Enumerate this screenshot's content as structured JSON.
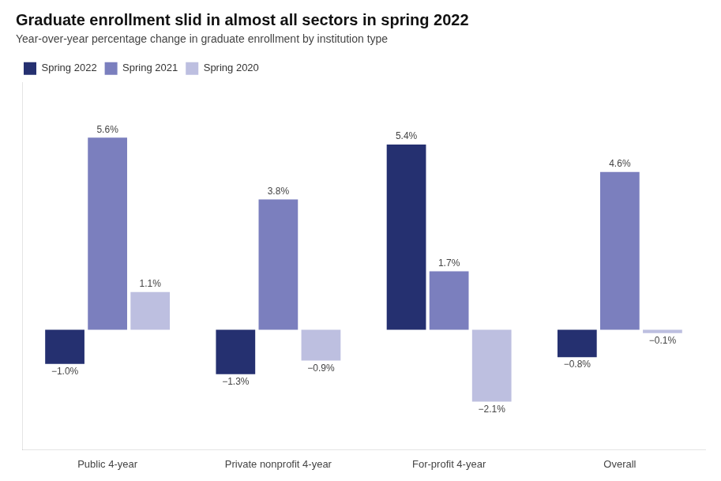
{
  "chart_data": {
    "type": "bar",
    "title": "Graduate enrollment slid in almost all sectors in spring 2022",
    "subtitle": "Year-over-year percentage change in graduate enrollment by institution type",
    "categories": [
      "Public 4-year",
      "Private nonprofit 4-year",
      "For-profit 4-year",
      "Overall"
    ],
    "series": [
      {
        "name": "Spring 2022",
        "color": "#253070",
        "values": [
          -1.0,
          -1.3,
          5.4,
          -0.8
        ],
        "value_labels": [
          "−1.0%",
          "−1.3%",
          "5.4%",
          "−0.8%"
        ]
      },
      {
        "name": "Spring 2021",
        "color": "#7b7fbe",
        "values": [
          5.6,
          3.8,
          1.7,
          4.6
        ],
        "value_labels": [
          "5.6%",
          "3.8%",
          "1.7%",
          "4.6%"
        ]
      },
      {
        "name": "Spring 2020",
        "color": "#bdbfe0",
        "values": [
          1.1,
          -0.9,
          -2.1,
          -0.1
        ],
        "value_labels": [
          "1.1%",
          "−0.9%",
          "−2.1%",
          "−0.1%"
        ]
      }
    ],
    "ylim": [
      -3.5,
      7.2
    ],
    "data_labels": true,
    "tick_labels": "x",
    "grid": false,
    "legend": "upper left"
  }
}
